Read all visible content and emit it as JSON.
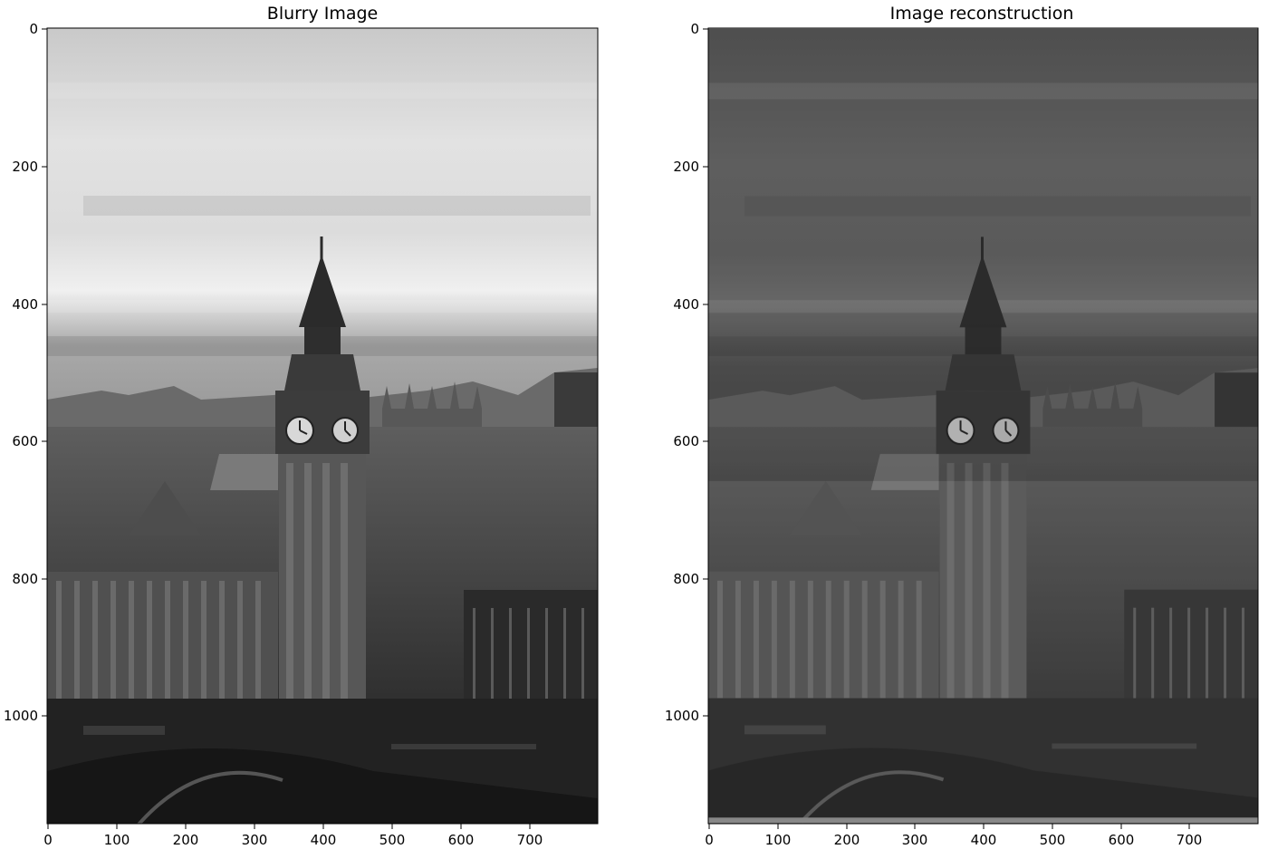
{
  "figure": {
    "panels": [
      {
        "id": "blurry",
        "title": "Blurry Image",
        "xticks": [
          "0",
          "100",
          "200",
          "300",
          "400",
          "500",
          "600",
          "700"
        ],
        "yticks": [
          "0",
          "200",
          "400",
          "600",
          "800",
          "1000"
        ]
      },
      {
        "id": "reconstruction",
        "title": "Image reconstruction",
        "xticks": [
          "0",
          "100",
          "200",
          "300",
          "400",
          "500",
          "600",
          "700"
        ],
        "yticks": [
          "0",
          "200",
          "400",
          "600",
          "800",
          "1000"
        ]
      }
    ]
  },
  "image_content": "grayscale photograph of the Elizabeth Tower (Big Ben) and the Palace of Westminster under a cloudy sky, with Westminster Bridge in the foreground"
}
